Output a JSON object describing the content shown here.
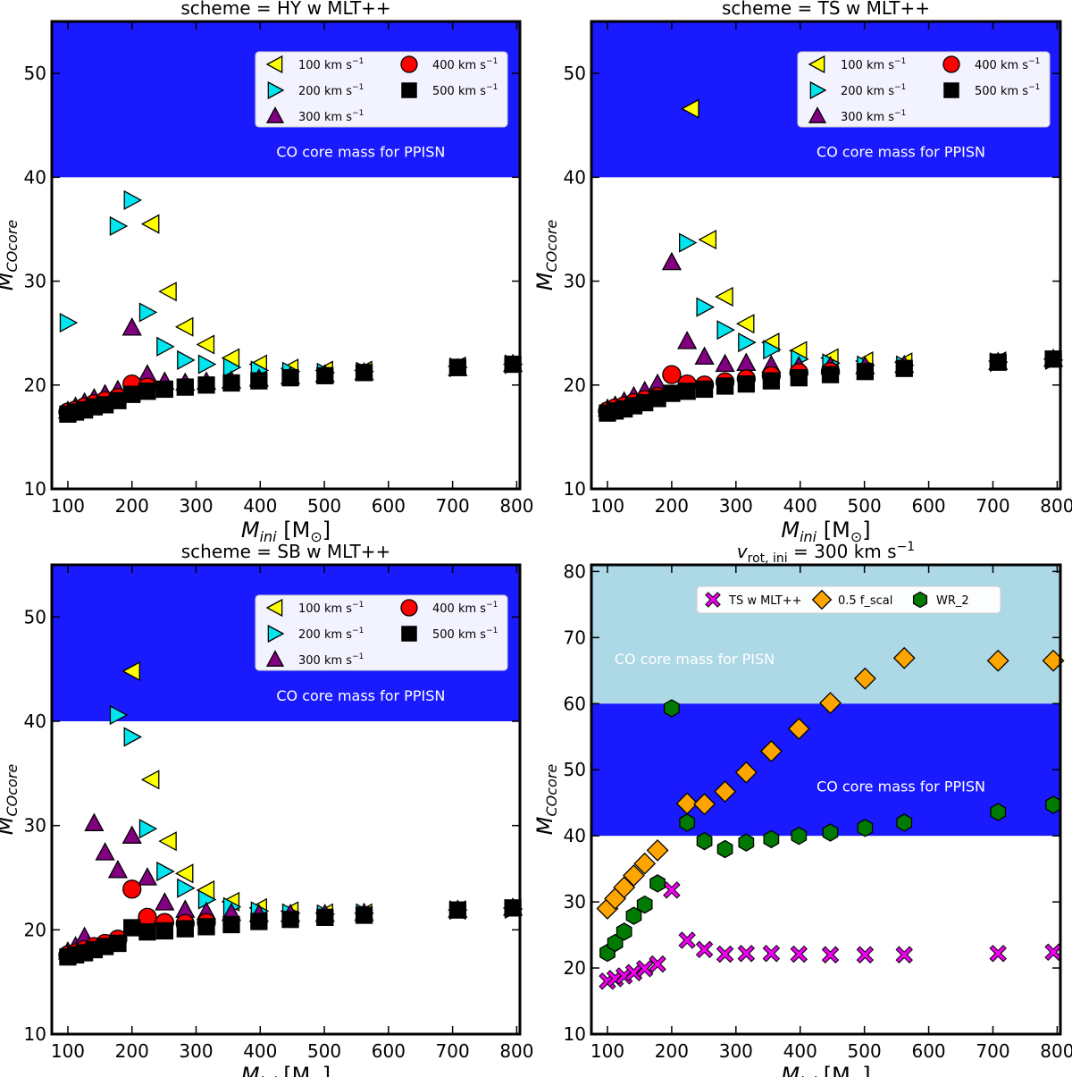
{
  "figure": {
    "panel_count": 4
  },
  "colors": {
    "ppisn_band": "#1a1aff",
    "pisn_band": "#add8e6",
    "v100": "#ffff00",
    "v200": "#00e5ee",
    "v300": "#800080",
    "v400": "#ff0000",
    "v500": "#000000",
    "ts": "#ee00ee",
    "fscal": "#ffa500",
    "wr2": "#007a00"
  },
  "chart_data": [
    {
      "type": "scatter",
      "title": "scheme = HY w MLT++",
      "xlabel_main": "M",
      "xlabel_sub": "ini",
      "xlabel_unit": "[M",
      "xlabel_sun": "⊙",
      "xlabel_close": "]",
      "ylabel_main": "M",
      "ylabel_sub": "COcore",
      "xlim": [
        75,
        805
      ],
      "ylim": [
        10,
        55
      ],
      "xticks": [
        100,
        200,
        300,
        400,
        500,
        600,
        700,
        800
      ],
      "xtick_labels": [
        "100",
        "200",
        "300",
        "400",
        "500",
        "600",
        "700",
        "800"
      ],
      "yticks": [
        10,
        20,
        30,
        40,
        50
      ],
      "ytick_labels": [
        "10",
        "20",
        "30",
        "40",
        "50"
      ],
      "bands": [
        {
          "ymin": 40,
          "ymax": 55,
          "color": "#1a1aff",
          "label": "CO core mass for PPISN",
          "label_y": 42.5,
          "label_color": "#ffffff"
        }
      ],
      "legend": {
        "position": "top-right",
        "columns": 2,
        "unit": "km s",
        "exponent": "−1"
      },
      "series": [
        {
          "name": "100",
          "marker": "tri-left",
          "color": "#ffff00",
          "x": [
            230,
            257,
            283,
            316,
            355,
            398,
            447,
            501,
            562,
            708,
            794
          ],
          "y": [
            35.5,
            29.0,
            25.6,
            23.9,
            22.6,
            22.0,
            21.6,
            21.4,
            21.4,
            21.8,
            22.0
          ]
        },
        {
          "name": "200",
          "marker": "tri-right",
          "color": "#00e5ee",
          "x": [
            100,
            178,
            200,
            224,
            251,
            283,
            316,
            355,
            398,
            447,
            501,
            562,
            708,
            794
          ],
          "y": [
            26.0,
            35.3,
            37.8,
            27.0,
            23.7,
            22.4,
            22.0,
            21.7,
            21.4,
            21.3,
            21.2,
            21.3,
            21.7,
            22.0
          ]
        },
        {
          "name": "300",
          "marker": "tri-up",
          "color": "#800080",
          "x": [
            100,
            112,
            126,
            141,
            158,
            178,
            200,
            224,
            251,
            283,
            316,
            355,
            398,
            447,
            501,
            562,
            708,
            794
          ],
          "y": [
            17.5,
            17.9,
            18.3,
            18.7,
            19.1,
            19.5,
            25.5,
            21.0,
            20.3,
            20.2,
            20.3,
            20.4,
            20.6,
            20.8,
            21.0,
            21.2,
            21.6,
            22.0
          ]
        },
        {
          "name": "400",
          "marker": "circle",
          "color": "#ff0000",
          "x": [
            100,
            112,
            126,
            141,
            158,
            178,
            200,
            224
          ],
          "y": [
            17.4,
            17.6,
            17.9,
            18.2,
            18.5,
            18.8,
            20.1,
            19.8
          ]
        },
        {
          "name": "500",
          "marker": "square",
          "color": "#000000",
          "x": [
            100,
            112,
            126,
            141,
            158,
            178,
            200,
            224,
            251,
            283,
            316,
            355,
            398,
            447,
            501,
            562,
            708,
            794
          ],
          "y": [
            17.2,
            17.4,
            17.6,
            17.9,
            18.1,
            18.5,
            19.1,
            19.4,
            19.6,
            19.8,
            20.0,
            20.2,
            20.4,
            20.7,
            20.9,
            21.2,
            21.7,
            22.0
          ]
        }
      ]
    },
    {
      "type": "scatter",
      "title": "scheme = TS w MLT++",
      "xlabel_main": "M",
      "xlabel_sub": "ini",
      "xlabel_unit": "[M",
      "xlabel_sun": "⊙",
      "xlabel_close": "]",
      "ylabel_main": "M",
      "ylabel_sub": "COcore",
      "xlim": [
        75,
        805
      ],
      "ylim": [
        10,
        55
      ],
      "xticks": [
        100,
        200,
        300,
        400,
        500,
        600,
        700,
        800
      ],
      "xtick_labels": [
        "100",
        "200",
        "300",
        "400",
        "500",
        "600",
        "700",
        "800"
      ],
      "yticks": [
        10,
        20,
        30,
        40,
        50
      ],
      "ytick_labels": [
        "10",
        "20",
        "30",
        "40",
        "50"
      ],
      "bands": [
        {
          "ymin": 40,
          "ymax": 55,
          "color": "#1a1aff",
          "label": "CO core mass for PPISN",
          "label_y": 42.5,
          "label_color": "#ffffff"
        }
      ],
      "legend": {
        "position": "top-right",
        "columns": 2,
        "unit": "km s",
        "exponent": "−1"
      },
      "series": [
        {
          "name": "100",
          "marker": "tri-left",
          "color": "#ffff00",
          "x": [
            230,
            257,
            283,
            316,
            355,
            398,
            447,
            501,
            562,
            708,
            794
          ],
          "y": [
            46.6,
            34.0,
            28.5,
            25.9,
            24.1,
            23.3,
            22.6,
            22.3,
            22.2,
            22.3,
            22.5
          ]
        },
        {
          "name": "200",
          "marker": "tri-right",
          "color": "#00e5ee",
          "x": [
            224,
            251,
            283,
            316,
            355,
            398,
            447,
            501,
            562,
            708,
            794
          ],
          "y": [
            33.7,
            27.5,
            25.3,
            24.1,
            23.4,
            22.5,
            22.1,
            21.9,
            21.9,
            22.2,
            22.4
          ]
        },
        {
          "name": "300",
          "marker": "tri-up",
          "color": "#800080",
          "x": [
            100,
            112,
            126,
            141,
            158,
            178,
            200,
            224,
            251,
            283,
            316,
            355,
            398,
            447,
            501,
            562,
            708,
            794
          ],
          "y": [
            17.7,
            18.0,
            18.4,
            18.9,
            19.4,
            20.1,
            31.8,
            24.2,
            22.7,
            22.0,
            22.1,
            21.9,
            21.8,
            21.8,
            21.8,
            21.9,
            22.2,
            22.5
          ]
        },
        {
          "name": "400",
          "marker": "circle",
          "color": "#ff0000",
          "x": [
            100,
            112,
            126,
            141,
            158,
            178,
            200,
            224,
            251,
            283,
            316,
            355,
            398,
            447
          ],
          "y": [
            17.5,
            17.8,
            18.0,
            18.3,
            18.6,
            18.9,
            21.0,
            20.1,
            20.0,
            20.3,
            20.6,
            20.9,
            21.2,
            21.3
          ]
        },
        {
          "name": "500",
          "marker": "square",
          "color": "#000000",
          "x": [
            100,
            112,
            126,
            141,
            158,
            178,
            200,
            224,
            251,
            283,
            316,
            355,
            398,
            447,
            501,
            562,
            708,
            794
          ],
          "y": [
            17.3,
            17.5,
            17.7,
            18.0,
            18.3,
            18.7,
            19.2,
            19.4,
            19.6,
            19.9,
            20.1,
            20.4,
            20.7,
            21.0,
            21.3,
            21.6,
            22.2,
            22.5
          ]
        }
      ]
    },
    {
      "type": "scatter",
      "title": "scheme = SB w MLT++",
      "xlabel_main": "M",
      "xlabel_sub": "ini",
      "xlabel_unit": "[M",
      "xlabel_sun": "⊙",
      "xlabel_close": "]",
      "ylabel_main": "M",
      "ylabel_sub": "COcore",
      "xlim": [
        75,
        805
      ],
      "ylim": [
        10,
        55
      ],
      "xticks": [
        100,
        200,
        300,
        400,
        500,
        600,
        700,
        800
      ],
      "xtick_labels": [
        "100",
        "200",
        "300",
        "400",
        "500",
        "600",
        "700",
        "800"
      ],
      "yticks": [
        10,
        20,
        30,
        40,
        50
      ],
      "ytick_labels": [
        "10",
        "20",
        "30",
        "40",
        "50"
      ],
      "bands": [
        {
          "ymin": 40,
          "ymax": 55,
          "color": "#1a1aff",
          "label": "CO core mass for PPISN",
          "label_y": 42.5,
          "label_color": "#ffffff"
        }
      ],
      "legend": {
        "position": "top-right",
        "columns": 2,
        "unit": "km s",
        "exponent": "−1"
      },
      "series": [
        {
          "name": "100",
          "marker": "tri-left",
          "color": "#ffff00",
          "x": [
            200,
            230,
            257,
            283,
            316,
            355,
            398,
            447,
            501,
            562,
            708,
            794
          ],
          "y": [
            44.8,
            34.4,
            28.5,
            25.4,
            23.8,
            22.7,
            22.1,
            21.8,
            21.6,
            21.6,
            21.9,
            22.1
          ]
        },
        {
          "name": "200",
          "marker": "tri-right",
          "color": "#00e5ee",
          "x": [
            178,
            200,
            224,
            251,
            283,
            316,
            355,
            398,
            447,
            501,
            562,
            708,
            794
          ],
          "y": [
            40.6,
            38.5,
            29.7,
            25.6,
            24.0,
            22.9,
            22.2,
            21.8,
            21.6,
            21.5,
            21.6,
            21.9,
            22.0
          ]
        },
        {
          "name": "300",
          "marker": "tri-up",
          "color": "#800080",
          "x": [
            100,
            112,
            126,
            141,
            158,
            178,
            200,
            224,
            251,
            283,
            316,
            355,
            398,
            447,
            501,
            562,
            708,
            794
          ],
          "y": [
            17.9,
            18.4,
            19.3,
            30.2,
            27.4,
            25.7,
            29.0,
            25.0,
            22.6,
            21.9,
            21.7,
            21.6,
            21.5,
            21.5,
            21.5,
            21.6,
            21.9,
            22.1
          ]
        },
        {
          "name": "400",
          "marker": "circle",
          "color": "#ff0000",
          "x": [
            100,
            112,
            126,
            141,
            158,
            178,
            200,
            224,
            251,
            283,
            316
          ],
          "y": [
            17.6,
            17.8,
            18.1,
            18.4,
            18.7,
            19.1,
            23.9,
            21.2,
            20.7,
            20.6,
            20.7
          ]
        },
        {
          "name": "500",
          "marker": "square",
          "color": "#000000",
          "x": [
            100,
            112,
            126,
            141,
            158,
            178,
            200,
            224,
            251,
            283,
            316,
            355,
            398,
            447,
            501,
            562,
            708,
            794
          ],
          "y": [
            17.4,
            17.6,
            17.8,
            18.1,
            18.4,
            18.7,
            20.2,
            19.8,
            19.9,
            20.1,
            20.3,
            20.5,
            20.8,
            21.0,
            21.2,
            21.4,
            21.9,
            22.1
          ]
        }
      ]
    },
    {
      "type": "scatter",
      "title_pre": "v",
      "title_sub": "rot, ini",
      "title_post": " = 300 km s",
      "title_exp": "−1",
      "xlabel_main": "M",
      "xlabel_sub": "ini",
      "xlabel_unit": "[M",
      "xlabel_sun": "⊙",
      "xlabel_close": "]",
      "ylabel_main": "M",
      "ylabel_sub": "COcore",
      "xlim": [
        75,
        805
      ],
      "ylim": [
        10,
        81
      ],
      "xticks": [
        100,
        200,
        300,
        400,
        500,
        600,
        700,
        800
      ],
      "xtick_labels": [
        "100",
        "200",
        "300",
        "400",
        "500",
        "600",
        "700",
        "800"
      ],
      "yticks": [
        10,
        20,
        30,
        40,
        50,
        60,
        70,
        80
      ],
      "ytick_labels": [
        "10",
        "20",
        "30",
        "40",
        "50",
        "60",
        "70",
        "80"
      ],
      "bands": [
        {
          "ymin": 60,
          "ymax": 81,
          "color": "#add8e6",
          "label": "CO core mass for PISN",
          "label_y": 66.8,
          "label_color": "#ffffff"
        },
        {
          "ymin": 40,
          "ymax": 60,
          "color": "#1a1aff",
          "label": "CO core mass for PPISN",
          "label_y": 47.5,
          "label_color": "#ffffff"
        }
      ],
      "legend": {
        "position": "top-center",
        "columns": 3
      },
      "series": [
        {
          "name": "TS w MLT++",
          "marker": "x-fat",
          "color": "#ee00ee",
          "x": [
            100,
            112,
            126,
            141,
            158,
            178,
            200,
            224,
            251,
            283,
            316,
            355,
            398,
            447,
            501,
            562,
            708,
            794
          ],
          "y": [
            18.0,
            18.4,
            18.8,
            19.3,
            19.9,
            20.6,
            31.8,
            24.2,
            22.8,
            22.1,
            22.2,
            22.2,
            22.1,
            22.0,
            22.0,
            22.0,
            22.2,
            22.4
          ]
        },
        {
          "name": "0.5 f_scal",
          "marker": "diamond",
          "color": "#ffa500",
          "x": [
            100,
            112,
            126,
            141,
            158,
            178,
            224,
            251,
            283,
            316,
            355,
            398,
            447,
            501,
            562,
            708,
            794
          ],
          "y": [
            29.0,
            30.5,
            32.2,
            34.0,
            35.8,
            37.8,
            44.9,
            44.8,
            46.7,
            49.6,
            52.8,
            56.2,
            60.1,
            63.8,
            66.9,
            66.5,
            66.5
          ]
        },
        {
          "name": "WR_2",
          "marker": "hexagon",
          "color": "#007a00",
          "x": [
            100,
            112,
            126,
            141,
            158,
            178,
            200,
            224,
            251,
            283,
            316,
            355,
            398,
            447,
            501,
            562,
            708,
            794
          ],
          "y": [
            22.3,
            23.8,
            25.5,
            27.9,
            29.6,
            32.8,
            59.3,
            42.0,
            39.2,
            38.0,
            39.0,
            39.5,
            40.0,
            40.5,
            41.2,
            42.0,
            43.6,
            44.7
          ]
        }
      ]
    }
  ]
}
